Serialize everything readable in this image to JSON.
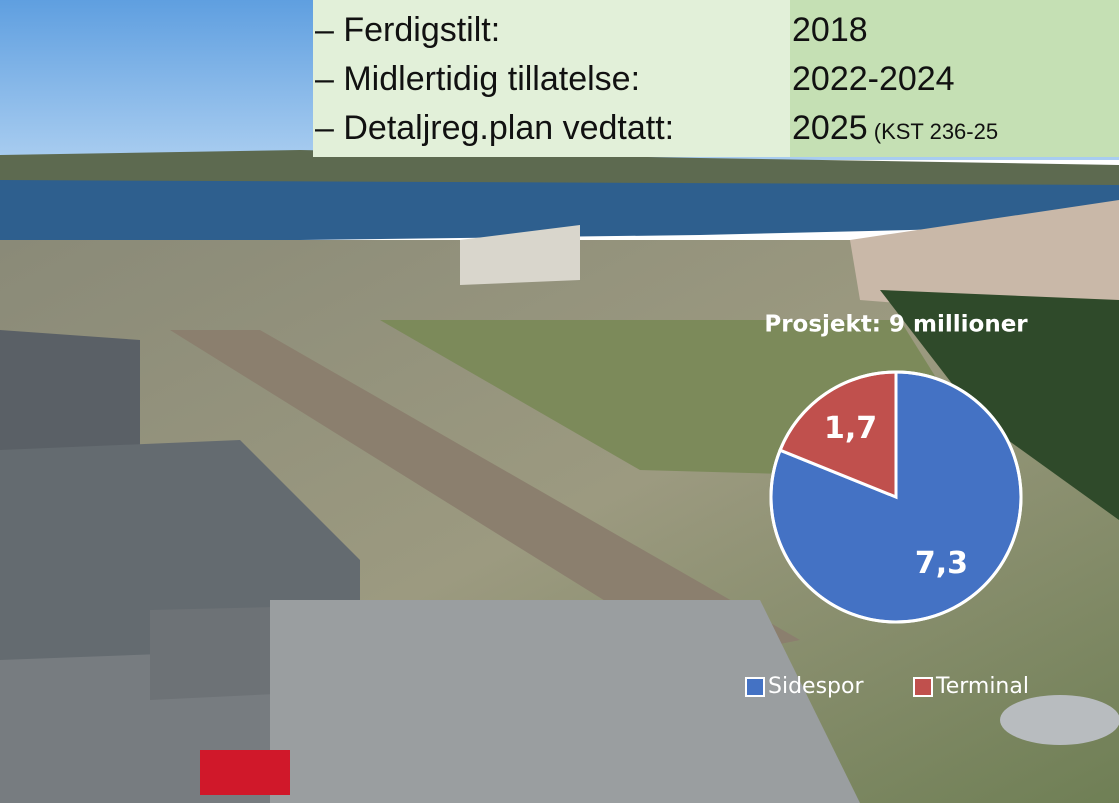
{
  "info_table": {
    "rows": [
      [
        "– Ferdigstilt:",
        "2018"
      ],
      [
        "– Midlertidig tillatelse:",
        "2022-2024"
      ],
      [
        "– Detaljreg.plan vedtatt:",
        "2025",
        " (KST 236-25"
      ]
    ]
  },
  "chart_data": {
    "type": "pie",
    "title": "Prosjekt: 9 millioner",
    "categories": [
      "Sidespor",
      "Terminal"
    ],
    "values": [
      7.3,
      1.7
    ],
    "value_labels": [
      "7,3",
      "1,7"
    ],
    "colors": [
      "#4472c4",
      "#c0504d"
    ],
    "legend": "bottom"
  }
}
